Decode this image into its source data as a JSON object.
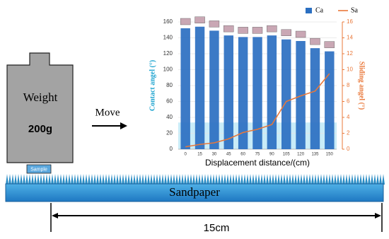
{
  "diagram": {
    "weight_label": "Weight",
    "mass": "200g",
    "sample": "Sample",
    "move": "Move",
    "surface": "Sandpaper",
    "distance": "15cm"
  },
  "chart_data": {
    "type": "bar",
    "categories": [
      "0",
      "15",
      "30",
      "45",
      "60",
      "75",
      "90",
      "105",
      "120",
      "135",
      "150"
    ],
    "series": [
      {
        "name": "Ca",
        "type": "bar",
        "color": "#2b6fc1",
        "values": [
          152,
          154,
          149,
          143,
          141,
          141,
          143,
          138,
          136,
          127,
          123
        ]
      },
      {
        "name": "Sa",
        "type": "line",
        "axis": "y2",
        "color": "#e9783a",
        "values": [
          0.3,
          0.6,
          0.8,
          1.3,
          2.1,
          2.5,
          3.1,
          6.0,
          6.7,
          7.3,
          9.5
        ]
      }
    ],
    "xlabel": "Displacement distance/(cm)",
    "ylabel": "Contact angel (°)",
    "y2label": "Sliding angel (°)",
    "ylim": [
      0,
      160
    ],
    "yticks": [
      0,
      20,
      40,
      60,
      80,
      100,
      120,
      140,
      160
    ],
    "y2lim": [
      0,
      16
    ],
    "y2ticks": [
      0,
      2,
      4,
      6,
      8,
      10,
      12,
      14,
      16
    ]
  }
}
